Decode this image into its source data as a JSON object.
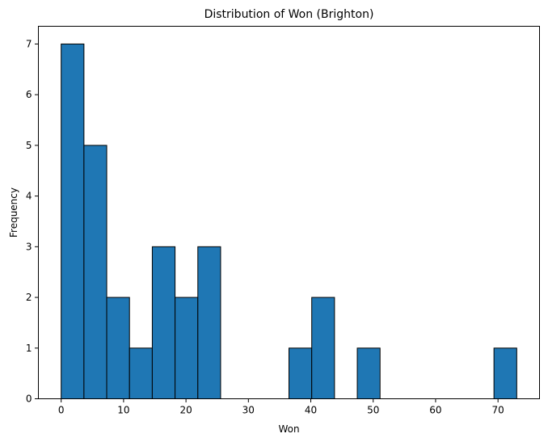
{
  "chart_data": {
    "type": "bar",
    "title": "Distribution of Won (Brighton)",
    "xlabel": "Won",
    "ylabel": "Frequency",
    "xlim": [
      -3.65,
      76.65
    ],
    "ylim": [
      0,
      7.35
    ],
    "xticks": [
      0,
      10,
      20,
      30,
      40,
      50,
      60,
      70
    ],
    "yticks": [
      0,
      1,
      2,
      3,
      4,
      5,
      6,
      7
    ],
    "bin_edges": [
      0,
      3.65,
      7.3,
      10.95,
      14.6,
      18.25,
      21.9,
      25.55,
      29.2,
      32.85,
      36.5,
      40.15,
      43.8,
      47.45,
      51.1,
      54.75,
      58.4,
      62.05,
      65.7,
      69.35,
      73
    ],
    "values": [
      7,
      5,
      2,
      1,
      3,
      2,
      3,
      0,
      0,
      0,
      1,
      2,
      0,
      1,
      0,
      0,
      0,
      0,
      0,
      1
    ],
    "bar_color": "#1f77b4",
    "edge_color": "#000000",
    "grid": false,
    "legend": "none"
  }
}
